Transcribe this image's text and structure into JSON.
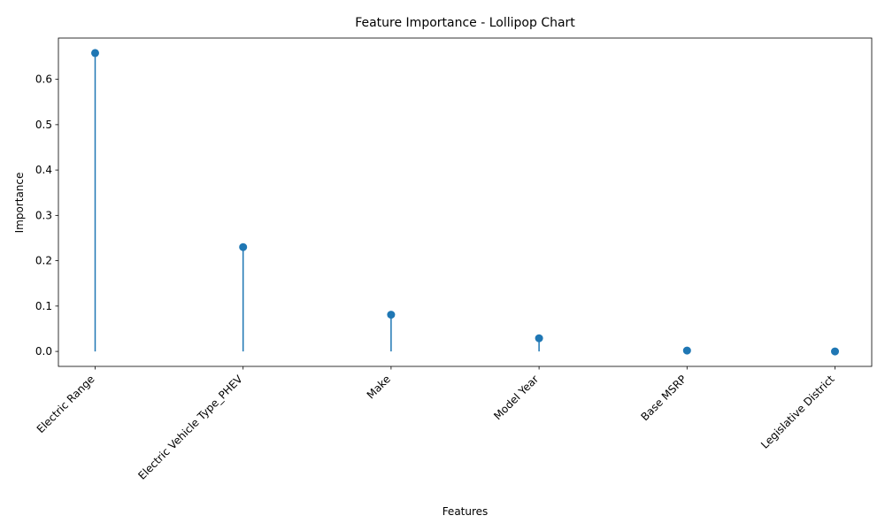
{
  "chart_data": {
    "type": "lollipop",
    "title": "Feature Importance - Lollipop Chart",
    "xlabel": "Features",
    "ylabel": "Importance",
    "categories": [
      "Electric Range",
      "Electric Vehicle Type_PHEV",
      "Make",
      "Model Year",
      "Base MSRP",
      "Legislative District"
    ],
    "values": [
      0.658,
      0.23,
      0.081,
      0.029,
      0.002,
      0.0
    ],
    "ylim": [
      -0.033,
      0.691
    ],
    "yticks": [
      "0.0",
      "0.1",
      "0.2",
      "0.3",
      "0.4",
      "0.5",
      "0.6"
    ],
    "grid": false,
    "legend": "none",
    "color": "#1f77b4"
  }
}
